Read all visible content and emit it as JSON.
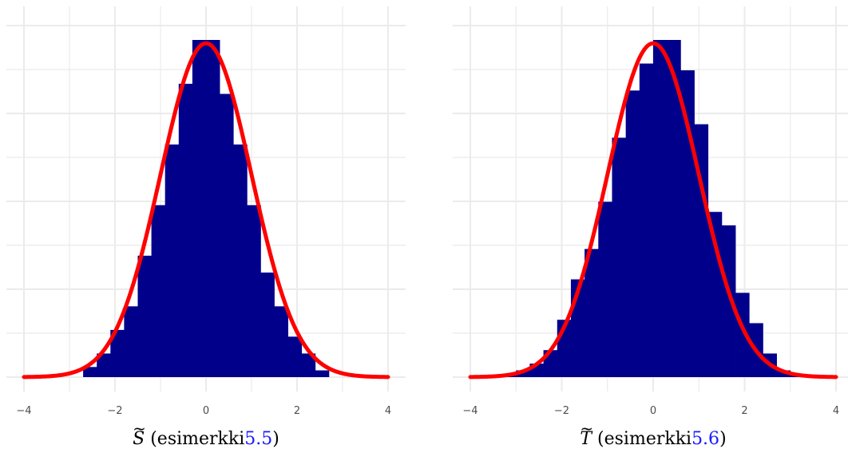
{
  "colors": {
    "bars": "#00008b",
    "curve": "#ff0000",
    "grid": "#ebebeb",
    "tick_text": "#4d4d4d",
    "reference_link": "#1a1aff"
  },
  "chart_data": [
    {
      "type": "bar",
      "subtype": "histogram with normal density overlay",
      "xlim": [
        -4,
        4
      ],
      "x_ticks": [
        -4,
        -2,
        0,
        2,
        4
      ],
      "x_tick_labels": [
        "−4",
        "−2",
        "0",
        "2",
        "4"
      ],
      "y_tick_labels_shown": false,
      "grid": true,
      "bin_width": 0.3,
      "bins": [
        {
          "x0": -2.7,
          "x1": -2.4,
          "value": 0.03
        },
        {
          "x0": -2.4,
          "x1": -2.1,
          "value": 0.07
        },
        {
          "x0": -2.1,
          "x1": -1.8,
          "value": 0.14
        },
        {
          "x0": -1.8,
          "x1": -1.5,
          "value": 0.21
        },
        {
          "x0": -1.5,
          "x1": -1.2,
          "value": 0.36
        },
        {
          "x0": -1.2,
          "x1": -0.9,
          "value": 0.51
        },
        {
          "x0": -0.9,
          "x1": -0.6,
          "value": 0.69
        },
        {
          "x0": -0.6,
          "x1": -0.3,
          "value": 0.87
        },
        {
          "x0": -0.3,
          "x1": 0.0,
          "value": 1.0
        },
        {
          "x0": 0.0,
          "x1": 0.3,
          "value": 1.0
        },
        {
          "x0": 0.3,
          "x1": 0.6,
          "value": 0.84
        },
        {
          "x0": 0.6,
          "x1": 0.9,
          "value": 0.69
        },
        {
          "x0": 0.9,
          "x1": 1.2,
          "value": 0.51
        },
        {
          "x0": 1.2,
          "x1": 1.5,
          "value": 0.31
        },
        {
          "x0": 1.5,
          "x1": 1.8,
          "value": 0.21
        },
        {
          "x0": 1.8,
          "x1": 2.1,
          "value": 0.12
        },
        {
          "x0": 2.1,
          "x1": 2.4,
          "value": 0.07
        },
        {
          "x0": 2.4,
          "x1": 2.7,
          "value": 0.02
        }
      ],
      "curve": {
        "type": "normal density",
        "mean": 0,
        "sd": 1,
        "scaled_peak": 0.99
      },
      "caption": {
        "symbol": "S",
        "accent": "~",
        "text": "(esimerkki",
        "reference": "5.5",
        "close": ")"
      }
    },
    {
      "type": "bar",
      "subtype": "histogram with normal density overlay",
      "xlim": [
        -4,
        4
      ],
      "x_ticks": [
        -4,
        -2,
        0,
        2,
        4
      ],
      "x_tick_labels": [
        "−4",
        "−2",
        "0",
        "2",
        "4"
      ],
      "y_tick_labels_shown": false,
      "grid": true,
      "bin_width": 0.3,
      "bins": [
        {
          "x0": -3.3,
          "x1": -3.0,
          "value": 0.01
        },
        {
          "x0": -3.0,
          "x1": -2.7,
          "value": 0.02
        },
        {
          "x0": -2.7,
          "x1": -2.4,
          "value": 0.04
        },
        {
          "x0": -2.4,
          "x1": -2.1,
          "value": 0.08
        },
        {
          "x0": -2.1,
          "x1": -1.8,
          "value": 0.17
        },
        {
          "x0": -1.8,
          "x1": -1.5,
          "value": 0.29
        },
        {
          "x0": -1.5,
          "x1": -1.2,
          "value": 0.38
        },
        {
          "x0": -1.2,
          "x1": -0.9,
          "value": 0.52
        },
        {
          "x0": -0.9,
          "x1": -0.6,
          "value": 0.71
        },
        {
          "x0": -0.6,
          "x1": -0.3,
          "value": 0.85
        },
        {
          "x0": -0.3,
          "x1": 0.0,
          "value": 0.93
        },
        {
          "x0": 0.0,
          "x1": 0.3,
          "value": 1.0
        },
        {
          "x0": 0.3,
          "x1": 0.6,
          "value": 1.0
        },
        {
          "x0": 0.6,
          "x1": 0.9,
          "value": 0.91
        },
        {
          "x0": 0.9,
          "x1": 1.2,
          "value": 0.75
        },
        {
          "x0": 1.2,
          "x1": 1.5,
          "value": 0.49
        },
        {
          "x0": 1.5,
          "x1": 1.8,
          "value": 0.45
        },
        {
          "x0": 1.8,
          "x1": 2.1,
          "value": 0.25
        },
        {
          "x0": 2.1,
          "x1": 2.4,
          "value": 0.16
        },
        {
          "x0": 2.4,
          "x1": 2.7,
          "value": 0.07
        },
        {
          "x0": 2.7,
          "x1": 3.0,
          "value": 0.02
        },
        {
          "x0": 3.0,
          "x1": 3.3,
          "value": 0.01
        }
      ],
      "curve": {
        "type": "normal density",
        "mean": 0,
        "sd": 1,
        "scaled_peak": 0.99
      },
      "caption": {
        "symbol": "T",
        "accent": "~",
        "text": "(esimerkki",
        "reference": "5.6",
        "close": ")"
      }
    }
  ]
}
